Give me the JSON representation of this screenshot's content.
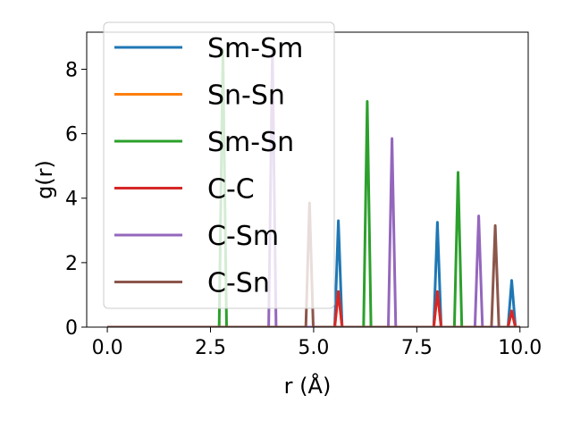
{
  "chart_data": {
    "type": "line",
    "title": "",
    "xlabel": "r (Å)",
    "ylabel": "g(r)",
    "xlim": [
      -0.5,
      10.2
    ],
    "ylim": [
      0,
      9.15
    ],
    "xticks": [
      0.0,
      2.5,
      5.0,
      7.5,
      10.0
    ],
    "xtick_labels": [
      "0.0",
      "2.5",
      "5.0",
      "7.5",
      "10.0"
    ],
    "yticks": [
      0,
      2,
      4,
      6,
      8
    ],
    "ytick_labels": [
      "0",
      "2",
      "4",
      "6",
      "8"
    ],
    "grid": false,
    "legend_position": "upper-left",
    "series": [
      {
        "name": "Sm-Sm",
        "color": "#1f77b4",
        "peaks": [
          [
            5.6,
            3.3
          ],
          [
            8.0,
            3.25
          ],
          [
            9.8,
            1.45
          ]
        ]
      },
      {
        "name": "Sn-Sn",
        "color": "#ff7f0e",
        "peaks": [
          [
            5.6,
            1.1
          ],
          [
            8.0,
            1.1
          ],
          [
            9.8,
            0.5
          ]
        ]
      },
      {
        "name": "Sm-Sn",
        "color": "#2ca02c",
        "peaks": [
          [
            2.8,
            8.6
          ],
          [
            6.3,
            7.0
          ],
          [
            8.5,
            4.8
          ]
        ]
      },
      {
        "name": "C-C",
        "color": "#d62728",
        "peaks": [
          [
            5.6,
            1.1
          ],
          [
            8.0,
            1.1
          ],
          [
            9.8,
            0.5
          ]
        ]
      },
      {
        "name": "C-Sm",
        "color": "#9467bd",
        "peaks": [
          [
            4.0,
            8.6
          ],
          [
            6.9,
            5.85
          ],
          [
            9.0,
            3.45
          ]
        ]
      },
      {
        "name": "C-Sn",
        "color": "#8c564b",
        "peaks": [
          [
            4.9,
            3.85
          ],
          [
            9.4,
            3.15
          ]
        ]
      }
    ]
  }
}
